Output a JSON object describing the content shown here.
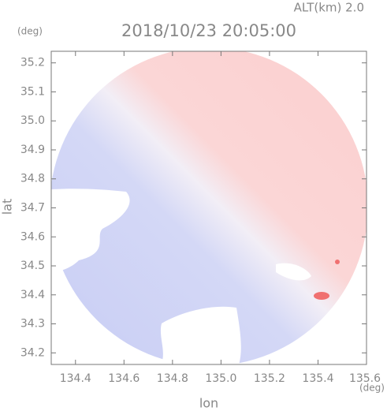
{
  "chart_data": {
    "type": "radar-map",
    "title": "2018/10/23 20:05:00",
    "subtitle": "ALT(km) 2.0",
    "x_label": "lon",
    "y_label": "lat",
    "x_unit": "(deg)",
    "y_unit": "(deg)",
    "xlim": [
      134.3,
      135.6
    ],
    "ylim": [
      34.16,
      35.24
    ],
    "xticks": [
      134.4,
      134.6,
      134.8,
      {
        "value": 135,
        "label": "135.0"
      },
      135.2,
      135.4,
      135.6
    ],
    "yticks": [
      34.2,
      34.3,
      34.4,
      34.5,
      34.6,
      34.7,
      34.8,
      34.9,
      {
        "value": 35,
        "label": "35.0"
      },
      35.1,
      35.2
    ]
  }
}
